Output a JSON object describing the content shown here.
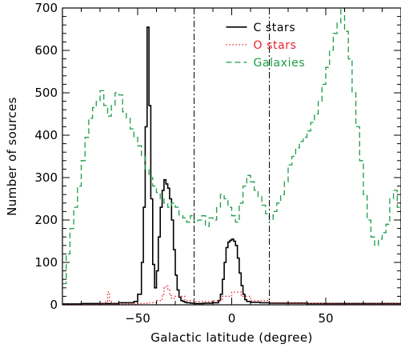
{
  "chart_data": {
    "type": "line",
    "title": "",
    "xlabel": "Galactic latitude (degree)",
    "ylabel": "Number of sources",
    "xlim": [
      -90,
      90
    ],
    "ylim": [
      0,
      700
    ],
    "xticks": [
      -50,
      0,
      50
    ],
    "yticks": [
      0,
      100,
      200,
      300,
      400,
      500,
      600,
      700
    ],
    "vlines": [
      -20,
      20
    ],
    "legend_position": "top-center",
    "series": [
      {
        "name": "C stars",
        "color": "#000000",
        "style": "solid",
        "x": [
          -90,
          -80,
          -70,
          -60,
          -52,
          -50,
          -48,
          -47,
          -46,
          -45,
          -44,
          -43,
          -42,
          -41,
          -40,
          -39,
          -38,
          -37,
          -36,
          -35,
          -34,
          -33,
          -32,
          -31,
          -30,
          -29,
          -28,
          -27,
          -26,
          -25,
          -24,
          -22,
          -20,
          -15,
          -10,
          -7,
          -6,
          -5,
          -4,
          -3,
          -2,
          -1,
          0,
          1,
          2,
          3,
          4,
          5,
          6,
          7,
          8,
          10,
          15,
          20,
          30,
          40,
          50,
          60,
          70,
          80,
          90
        ],
        "values": [
          2,
          3,
          3,
          5,
          8,
          25,
          100,
          230,
          420,
          655,
          470,
          250,
          95,
          40,
          80,
          160,
          230,
          270,
          295,
          285,
          275,
          250,
          200,
          130,
          70,
          35,
          18,
          10,
          8,
          6,
          5,
          4,
          3,
          4,
          5,
          10,
          25,
          60,
          100,
          135,
          148,
          152,
          155,
          150,
          140,
          110,
          75,
          45,
          25,
          12,
          8,
          6,
          5,
          4,
          4,
          3,
          3,
          3,
          3,
          3,
          2
        ]
      },
      {
        "name": "O stars",
        "color": "#e8202a",
        "style": "dotted",
        "x": [
          -90,
          -70,
          -67,
          -66,
          -65,
          -64,
          -60,
          -50,
          -45,
          -40,
          -37,
          -36,
          -35,
          -34,
          -33,
          -32,
          -30,
          -25,
          -20,
          -10,
          -5,
          0,
          5,
          10,
          20,
          30,
          50,
          70,
          90
        ],
        "values": [
          1,
          2,
          8,
          30,
          8,
          2,
          2,
          3,
          5,
          10,
          25,
          40,
          45,
          35,
          22,
          15,
          20,
          10,
          8,
          10,
          20,
          30,
          20,
          10,
          5,
          3,
          2,
          2,
          1
        ],
        "visible": false
      },
      {
        "name": "Galaxies",
        "color": "#1a9d46",
        "style": "dashed",
        "x": [
          -90,
          -88,
          -86,
          -84,
          -82,
          -80,
          -78,
          -76,
          -74,
          -72,
          -70,
          -68,
          -66,
          -64,
          -62,
          -60,
          -58,
          -56,
          -54,
          -52,
          -50,
          -48,
          -46,
          -44,
          -42,
          -40,
          -38,
          -36,
          -34,
          -32,
          -30,
          -28,
          -26,
          -24,
          -22,
          -20,
          -18,
          -16,
          -14,
          -12,
          -10,
          -8,
          -6,
          -4,
          -2,
          0,
          2,
          4,
          6,
          8,
          10,
          12,
          14,
          16,
          18,
          20,
          22,
          24,
          26,
          28,
          30,
          32,
          34,
          36,
          38,
          40,
          42,
          44,
          46,
          48,
          50,
          52,
          54,
          56,
          58,
          60,
          62,
          64,
          66,
          68,
          70,
          72,
          74,
          76,
          78,
          80,
          82,
          84,
          86,
          88,
          90
        ],
        "values": [
          50,
          120,
          180,
          230,
          280,
          340,
          395,
          440,
          465,
          480,
          505,
          470,
          445,
          470,
          500,
          495,
          455,
          440,
          415,
          395,
          375,
          350,
          320,
          300,
          280,
          265,
          250,
          240,
          230,
          240,
          230,
          210,
          205,
          195,
          210,
          195,
          200,
          210,
          185,
          205,
          200,
          230,
          260,
          250,
          230,
          210,
          195,
          240,
          280,
          305,
          290,
          270,
          255,
          235,
          215,
          200,
          220,
          240,
          260,
          290,
          330,
          350,
          370,
          385,
          395,
          410,
          430,
          450,
          480,
          520,
          560,
          600,
          640,
          665,
          700,
          645,
          580,
          500,
          420,
          340,
          260,
          200,
          160,
          140,
          155,
          170,
          190,
          250,
          270,
          230,
          170
        ]
      }
    ]
  }
}
